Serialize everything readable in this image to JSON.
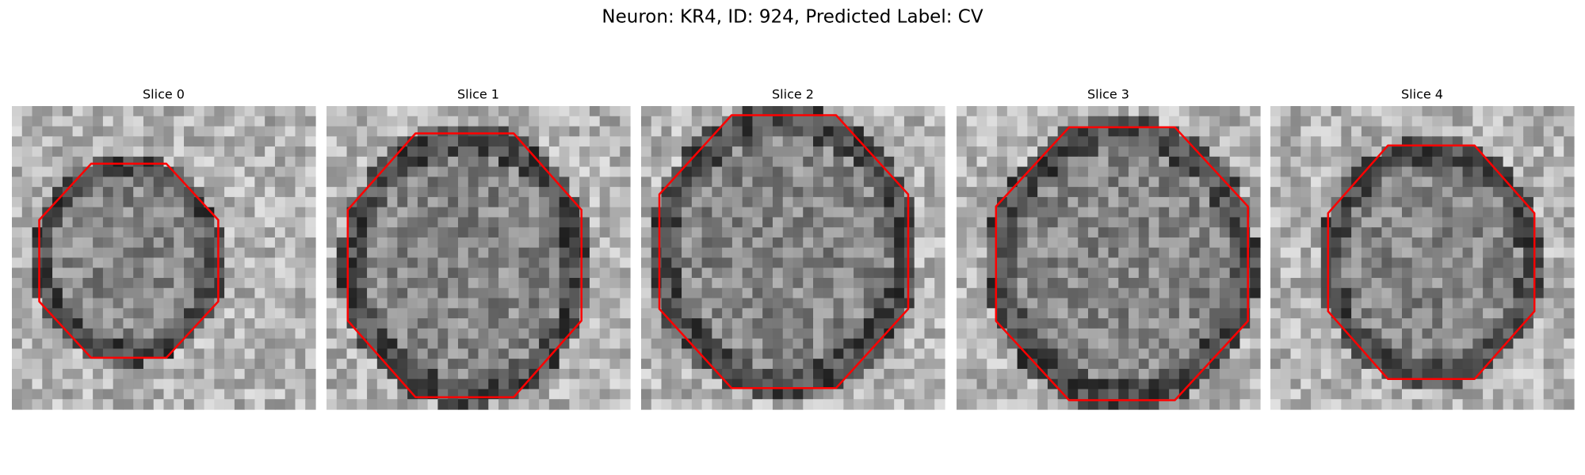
{
  "title": "Neuron: KR4, ID: 924, Predicted Label: CV",
  "panels": [
    {
      "title": "Slice 0"
    },
    {
      "title": "Slice 1"
    },
    {
      "title": "Slice 2"
    },
    {
      "title": "Slice 3"
    },
    {
      "title": "Slice 4"
    }
  ]
}
